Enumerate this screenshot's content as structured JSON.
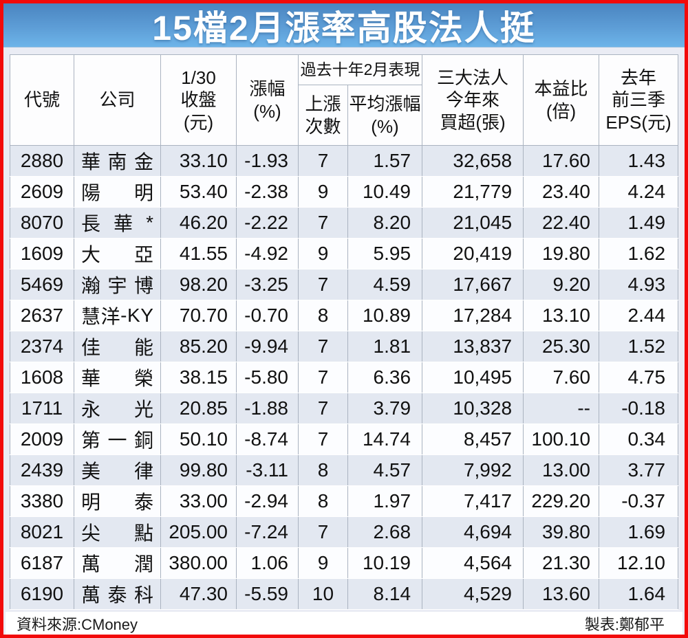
{
  "title": "15檔2月漲率高股法人挺",
  "table": {
    "headers": {
      "code": "代號",
      "company": "公司",
      "close": "1/30\n收盤\n(元)",
      "change": "漲幅\n(%)",
      "past_group": "過去十年2月表現",
      "up_count": "上漲\n次數",
      "avg_gain": "平均漲幅\n(%)",
      "net_buy": "三大法人\n今年來\n買超(張)",
      "pe": "本益比\n(倍)",
      "eps": "去年\n前三季\nEPS(元)"
    }
  },
  "chart_data": {
    "type": "table",
    "title": "15檔2月漲率高股法人挺",
    "columns": [
      "代號",
      "公司",
      "1/30收盤(元)",
      "漲幅(%)",
      "過去十年2月表現-上漲次數",
      "過去十年2月表現-平均漲幅(%)",
      "三大法人今年來買超(張)",
      "本益比(倍)",
      "去年前三季EPS(元)"
    ],
    "rows": [
      [
        "2880",
        "華南金",
        "33.10",
        "-1.93",
        "7",
        "1.57",
        "32,658",
        "17.60",
        "1.43"
      ],
      [
        "2609",
        "陽明",
        "53.40",
        "-2.38",
        "9",
        "10.49",
        "21,779",
        "23.40",
        "4.24"
      ],
      [
        "8070",
        "長華*",
        "46.20",
        "-2.22",
        "7",
        "8.20",
        "21,045",
        "22.40",
        "1.49"
      ],
      [
        "1609",
        "大亞",
        "41.55",
        "-4.92",
        "9",
        "5.95",
        "20,419",
        "19.80",
        "1.62"
      ],
      [
        "5469",
        "瀚宇博",
        "98.20",
        "-3.25",
        "7",
        "4.59",
        "17,667",
        "9.20",
        "4.93"
      ],
      [
        "2637",
        "慧洋-KY",
        "70.70",
        "-0.70",
        "8",
        "10.89",
        "17,284",
        "13.10",
        "2.44"
      ],
      [
        "2374",
        "佳能",
        "85.20",
        "-9.94",
        "7",
        "1.81",
        "13,837",
        "25.30",
        "1.52"
      ],
      [
        "1608",
        "華榮",
        "38.15",
        "-5.80",
        "7",
        "6.36",
        "10,495",
        "7.60",
        "4.75"
      ],
      [
        "1711",
        "永光",
        "20.85",
        "-1.88",
        "7",
        "3.79",
        "10,328",
        "--",
        "-0.18"
      ],
      [
        "2009",
        "第一銅",
        "50.10",
        "-8.74",
        "7",
        "14.74",
        "8,457",
        "100.10",
        "0.34"
      ],
      [
        "2439",
        "美律",
        "99.80",
        "-3.11",
        "8",
        "4.57",
        "7,992",
        "13.00",
        "3.77"
      ],
      [
        "3380",
        "明泰",
        "33.00",
        "-2.94",
        "8",
        "1.97",
        "7,417",
        "229.20",
        "-0.37"
      ],
      [
        "8021",
        "尖點",
        "205.00",
        "-7.24",
        "7",
        "2.68",
        "4,694",
        "39.80",
        "1.69"
      ],
      [
        "6187",
        "萬潤",
        "380.00",
        "1.06",
        "9",
        "10.19",
        "4,564",
        "21.30",
        "12.10"
      ],
      [
        "6190",
        "萬泰科",
        "47.30",
        "-5.59",
        "10",
        "8.14",
        "4,529",
        "13.60",
        "1.64"
      ]
    ]
  },
  "footer": {
    "source": "資料來源:CMoney",
    "credit": "製表:鄭郁平"
  },
  "colors": {
    "frame_red": "#f20a0a",
    "banner_blue_top": "#4a85c0",
    "banner_blue_bottom": "#6db4e9",
    "background_lavender": "#eaecf4",
    "row_tint": "#e3e8f1",
    "grid_line": "#aab3c0"
  }
}
